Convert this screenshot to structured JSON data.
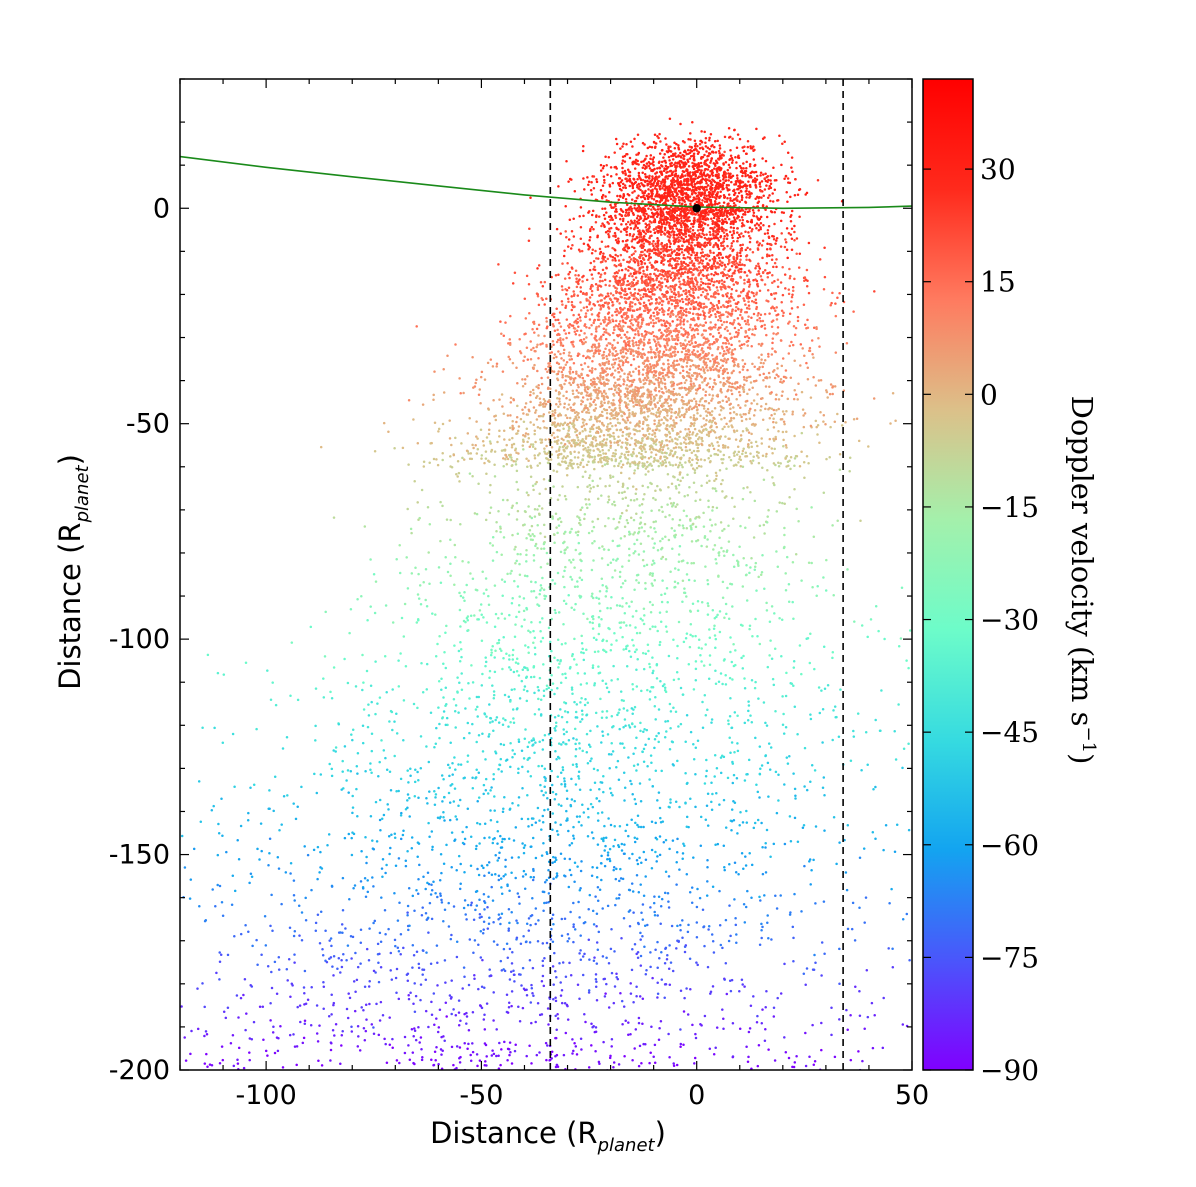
{
  "chart_data": {
    "type": "scatter",
    "xlabel": {
      "main": "Distance (R",
      "sub": "planet",
      "close": ")"
    },
    "ylabel": {
      "main": "Distance (R",
      "sub": "planet",
      "close": ")"
    },
    "xlim": [
      -120,
      50
    ],
    "ylim": [
      -200,
      30
    ],
    "xticks": [
      -100,
      -50,
      0,
      50
    ],
    "xtick_labels": [
      "-100",
      "-50",
      "0",
      "50"
    ],
    "yticks": [
      0,
      -50,
      -100,
      -150,
      -200
    ],
    "ytick_labels": [
      "0",
      "-50",
      "-100",
      "-150",
      "-200"
    ],
    "vertical_dashed_lines_x": [
      -34,
      34
    ],
    "planet_marker": {
      "x": 0,
      "y": 0
    },
    "orbit_curve": {
      "points": [
        [
          -120,
          12
        ],
        [
          -100,
          9.5
        ],
        [
          -80,
          7.3
        ],
        [
          -60,
          5.2
        ],
        [
          -40,
          3.1
        ],
        [
          -20,
          1.4
        ],
        [
          0,
          0.3
        ],
        [
          20,
          0.0
        ],
        [
          40,
          0.2
        ],
        [
          50,
          0.5
        ]
      ]
    },
    "colorbar": {
      "title": {
        "main": "Doppler velocity (km s",
        "sup": "−1",
        "close": ")"
      },
      "range": [
        -90,
        42
      ],
      "ticks": [
        30,
        15,
        0,
        -15,
        -30,
        -45,
        -60,
        -75,
        -90
      ],
      "tick_labels": [
        "30",
        "15",
        "0",
        "−15",
        "−30",
        "−45",
        "−60",
        "−75",
        "−90"
      ],
      "colormap": "rainbow",
      "colors": [
        "#8000ff",
        "#4a56fb",
        "#13a4f0",
        "#36dbe0",
        "#6dfcc9",
        "#a4f0ab",
        "#dcc089",
        "#ff7a5f",
        "#ff2a1c",
        "#ff0000"
      ]
    },
    "particle_cloud": {
      "count": 11000,
      "core": {
        "x": 0,
        "y": 5,
        "velocity_km_s": 30
      },
      "tail_direction": "down-left",
      "velocity_top": 30,
      "velocity_bottom": -90
    }
  }
}
